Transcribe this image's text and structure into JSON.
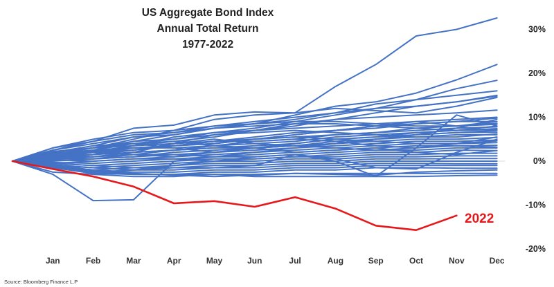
{
  "chart_data": {
    "type": "line",
    "title_lines": [
      "US Aggregate Bond Index",
      "Annual Total Return",
      "1977-2022"
    ],
    "categories": [
      "",
      "Jan",
      "Feb",
      "Mar",
      "Apr",
      "May",
      "Jun",
      "Jul",
      "Aug",
      "Sep",
      "Oct",
      "Nov",
      "Dec"
    ],
    "ytick_labels": [
      "30%",
      "20%",
      "10%",
      "0%",
      "-10%",
      "-20%"
    ],
    "ytick_values": [
      30,
      20,
      10,
      0,
      -10,
      -20
    ],
    "ylim": [
      -20,
      33
    ],
    "y_axis_side": "right",
    "grid": false,
    "colors": {
      "history": "#4472C4",
      "highlight": "#E5191C"
    },
    "annotation": {
      "text": "2022",
      "color": "#E5191C"
    },
    "highlight_series": {
      "name": "2022",
      "values": [
        0,
        -1.8,
        -3.5,
        -5.8,
        -9.6,
        -9.1,
        -10.4,
        -8.2,
        -10.8,
        -14.7,
        -15.7,
        -12.4
      ]
    },
    "series": [
      {
        "values": [
          0,
          3.0,
          4.5,
          7.5,
          8.2,
          10.5,
          11.2,
          11.0,
          17.0,
          22.0,
          28.5,
          30.0,
          32.6
        ]
      },
      {
        "values": [
          0,
          2.5,
          4.0,
          5.5,
          6.0,
          7.5,
          8.5,
          10.5,
          12.5,
          13.5,
          15.5,
          18.5,
          22.0
        ]
      },
      {
        "values": [
          0,
          2.0,
          3.5,
          5.5,
          6.5,
          8.0,
          9.0,
          10.0,
          11.0,
          12.0,
          14.0,
          16.5,
          18.4
        ]
      },
      {
        "values": [
          0,
          1.5,
          3.0,
          4.5,
          6.0,
          7.5,
          8.5,
          9.5,
          11.0,
          13.0,
          14.0,
          15.0,
          16.0
        ]
      },
      {
        "values": [
          0,
          1.8,
          2.5,
          4.0,
          5.0,
          6.5,
          7.5,
          9.0,
          10.5,
          12.0,
          12.5,
          13.5,
          15.0
        ]
      },
      {
        "values": [
          0,
          1.2,
          2.2,
          3.5,
          4.5,
          5.5,
          7.0,
          8.5,
          9.5,
          10.0,
          10.5,
          11.0,
          11.6
        ]
      },
      {
        "values": [
          0,
          2.2,
          3.0,
          3.5,
          4.0,
          4.5,
          5.5,
          6.5,
          7.0,
          8.0,
          9.0,
          9.5,
          10.0
        ]
      },
      {
        "values": [
          0,
          1.0,
          1.5,
          2.5,
          3.5,
          4.0,
          5.0,
          6.0,
          7.0,
          7.5,
          8.5,
          9.0,
          9.0
        ]
      },
      {
        "values": [
          0,
          0.8,
          2.0,
          3.0,
          3.0,
          3.5,
          4.5,
          5.0,
          6.0,
          6.5,
          7.5,
          8.0,
          8.4
        ]
      },
      {
        "values": [
          0,
          1.5,
          2.5,
          3.0,
          3.5,
          4.5,
          5.0,
          5.5,
          6.0,
          6.5,
          7.0,
          7.5,
          7.8
        ]
      },
      {
        "values": [
          0,
          0.5,
          1.0,
          2.0,
          2.5,
          3.5,
          4.0,
          4.5,
          5.5,
          6.0,
          6.5,
          7.0,
          7.2
        ]
      },
      {
        "values": [
          0,
          1.0,
          0.5,
          1.5,
          2.5,
          3.0,
          3.5,
          4.0,
          5.0,
          5.5,
          6.0,
          6.5,
          6.6
        ]
      },
      {
        "values": [
          0,
          0.5,
          1.5,
          2.0,
          2.5,
          3.0,
          3.0,
          3.5,
          4.5,
          5.0,
          5.5,
          6.0,
          6.0
        ]
      },
      {
        "values": [
          0,
          0.0,
          0.5,
          1.0,
          2.0,
          2.5,
          3.0,
          3.5,
          4.0,
          4.5,
          5.0,
          5.0,
          5.4
        ]
      },
      {
        "values": [
          0,
          0.8,
          1.0,
          1.5,
          1.5,
          2.0,
          2.5,
          3.0,
          3.5,
          4.0,
          4.5,
          4.5,
          4.8
        ]
      },
      {
        "values": [
          0,
          -0.5,
          0.0,
          0.5,
          1.0,
          1.5,
          2.0,
          2.5,
          3.0,
          3.5,
          4.0,
          4.0,
          4.2
        ]
      },
      {
        "values": [
          0,
          0.5,
          0.5,
          1.0,
          1.5,
          1.0,
          1.5,
          2.0,
          2.5,
          3.0,
          3.5,
          3.5,
          3.6
        ]
      },
      {
        "values": [
          0,
          -0.3,
          -0.5,
          0.0,
          0.5,
          1.0,
          1.0,
          1.5,
          2.0,
          2.5,
          2.5,
          3.0,
          3.0
        ]
      },
      {
        "values": [
          0,
          0.3,
          0.0,
          0.5,
          0.5,
          0.0,
          0.5,
          1.0,
          1.5,
          2.0,
          2.0,
          2.5,
          2.4
        ]
      },
      {
        "values": [
          0,
          -0.5,
          -1.0,
          -0.5,
          0.0,
          0.5,
          0.5,
          1.0,
          1.0,
          1.5,
          1.5,
          1.8,
          1.8
        ]
      },
      {
        "values": [
          0,
          -0.8,
          -1.5,
          -1.0,
          -0.5,
          0.0,
          0.0,
          0.5,
          0.5,
          1.0,
          1.0,
          1.2,
          1.2
        ]
      },
      {
        "values": [
          0,
          -1.0,
          -2.0,
          -1.5,
          -1.0,
          -0.5,
          -0.5,
          0.0,
          0.0,
          0.5,
          0.5,
          0.6,
          0.6
        ]
      },
      {
        "values": [
          0,
          -0.5,
          -1.0,
          -1.5,
          -1.5,
          -1.0,
          -1.0,
          -0.5,
          -0.5,
          0.0,
          0.0,
          0.0,
          0.0
        ]
      },
      {
        "values": [
          0,
          -1.0,
          -1.5,
          -2.0,
          -2.0,
          -1.5,
          -1.5,
          -1.0,
          -1.0,
          -0.5,
          -0.5,
          -0.6,
          -0.6
        ]
      },
      {
        "values": [
          0,
          -1.5,
          -2.0,
          -2.5,
          -2.5,
          -2.0,
          -2.0,
          -1.5,
          -1.5,
          -1.0,
          -1.0,
          -1.0,
          -1.0
        ]
      },
      {
        "values": [
          0,
          -1.2,
          -2.5,
          -3.0,
          -3.0,
          -2.5,
          -2.5,
          -2.0,
          -2.0,
          -1.5,
          -1.5,
          -1.6,
          -1.6
        ]
      },
      {
        "values": [
          0,
          -0.8,
          -2.2,
          -2.8,
          -3.2,
          -3.5,
          -3.2,
          -2.8,
          -3.0,
          -3.2,
          -2.5,
          -2.2,
          -2.0
        ]
      },
      {
        "values": [
          0,
          -1.5,
          -2.8,
          -3.0,
          -3.0,
          -3.0,
          -3.0,
          -2.8,
          -2.8,
          -2.8,
          -2.8,
          -2.8,
          -2.8
        ]
      },
      {
        "values": [
          0,
          -2.5,
          -3.0,
          -3.5,
          -3.5,
          -3.0,
          -3.5,
          -3.5,
          -3.5,
          -3.5,
          -3.5,
          -3.3,
          -3.2
        ]
      },
      {
        "values": [
          0,
          -3.0,
          -9.0,
          -8.8,
          0.0,
          1.0,
          2.0,
          3.0,
          4.0,
          5.0,
          6.0,
          6.5,
          7.0
        ]
      },
      {
        "values": [
          0,
          -1.0,
          -1.5,
          -2.0,
          -1.0,
          0.0,
          1.0,
          1.5,
          0.0,
          -3.5,
          3.0,
          10.5,
          8.0
        ]
      },
      {
        "values": [
          0,
          -1.0,
          -2.5,
          -2.0,
          -1.5,
          -1.5,
          -1.0,
          1.5,
          0.5,
          -1.5,
          -1.8,
          2.0,
          5.0
        ]
      },
      {
        "values": [
          0,
          1.0,
          2.0,
          1.5,
          1.0,
          2.0,
          3.0,
          2.0,
          2.5,
          3.0,
          2.0,
          1.5,
          2.4
        ]
      },
      {
        "values": [
          0,
          0.8,
          1.5,
          2.5,
          3.5,
          4.5,
          4.5,
          5.0,
          4.5,
          3.5,
          3.0,
          4.0,
          5.5
        ]
      },
      {
        "values": [
          0,
          2.0,
          3.5,
          4.0,
          3.0,
          2.0,
          3.0,
          4.0,
          5.0,
          5.5,
          6.5,
          7.0,
          8.0
        ]
      },
      {
        "values": [
          0,
          1.5,
          2.0,
          2.5,
          4.0,
          5.0,
          4.0,
          3.5,
          4.0,
          5.0,
          6.0,
          7.5,
          9.5
        ]
      },
      {
        "values": [
          0,
          0.5,
          1.5,
          3.5,
          5.5,
          6.5,
          7.0,
          7.5,
          8.0,
          8.5,
          9.0,
          8.0,
          9.0
        ]
      },
      {
        "values": [
          0,
          3.0,
          5.0,
          6.5,
          7.0,
          8.0,
          8.5,
          9.0,
          9.0,
          8.5,
          8.0,
          8.0,
          8.6
        ]
      },
      {
        "values": [
          0,
          2.5,
          4.5,
          6.0,
          6.5,
          7.5,
          8.0,
          8.5,
          8.5,
          8.0,
          7.5,
          7.0,
          7.4
        ]
      },
      {
        "values": [
          0,
          1.0,
          2.5,
          4.5,
          5.0,
          6.0,
          6.5,
          7.0,
          6.5,
          6.0,
          5.5,
          5.5,
          6.2
        ]
      },
      {
        "values": [
          0,
          0.5,
          1.5,
          3.0,
          3.5,
          4.5,
          5.0,
          5.5,
          5.0,
          4.5,
          4.0,
          4.0,
          4.6
        ]
      },
      {
        "values": [
          0,
          1.5,
          3.0,
          4.0,
          4.5,
          3.5,
          3.0,
          3.5,
          3.0,
          2.5,
          3.0,
          3.5,
          3.2
        ]
      },
      {
        "values": [
          0,
          2.0,
          3.0,
          5.0,
          7.0,
          9.5,
          10.5,
          11.0,
          12.0,
          11.5,
          11.0,
          12.5,
          14.5
        ]
      },
      {
        "values": [
          0,
          1.0,
          1.0,
          2.0,
          4.0,
          6.0,
          7.0,
          8.0,
          9.5,
          11.0,
          12.5,
          13.5,
          14.8
        ]
      },
      {
        "values": [
          0,
          0.5,
          2.0,
          3.0,
          3.5,
          4.0,
          5.0,
          6.0,
          7.0,
          8.0,
          8.5,
          9.0,
          9.8
        ]
      }
    ]
  },
  "source_note": "Source: Bloomberg Finance L.P"
}
